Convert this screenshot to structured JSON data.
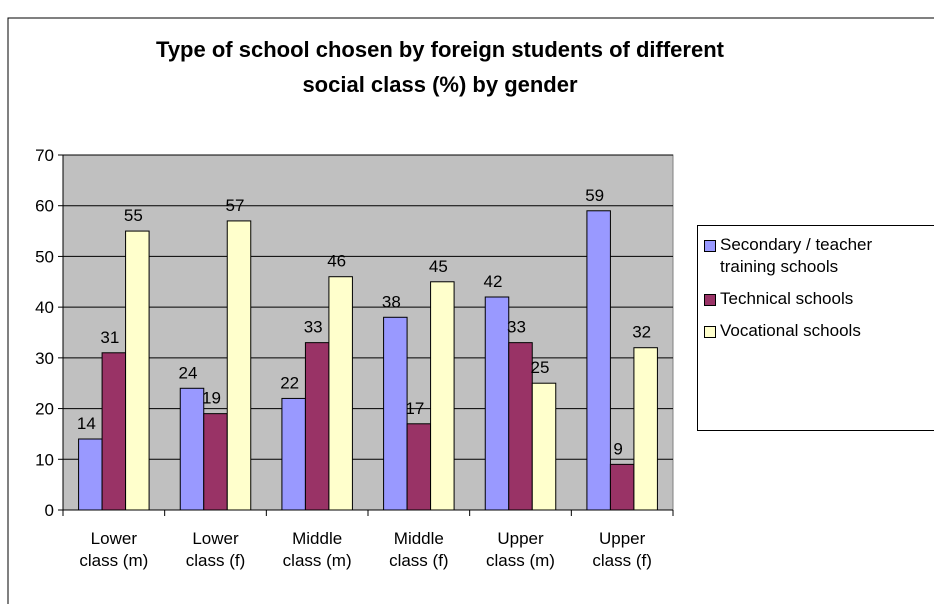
{
  "chart_data": {
    "type": "bar",
    "title": "Type of school chosen by foreign students of different social class (%) by gender",
    "categories": [
      "Lower class (m)",
      "Lower class (f)",
      "Middle class (m)",
      "Middle class (f)",
      "Upper class (m)",
      "Upper class (f)"
    ],
    "series": [
      {
        "name": "Secondary / teacher training schools",
        "color": "#9999ff",
        "values": [
          14,
          24,
          22,
          38,
          42,
          59
        ]
      },
      {
        "name": "Technical schools",
        "color": "#993366",
        "values": [
          31,
          19,
          33,
          17,
          33,
          9
        ]
      },
      {
        "name": "Vocational schools",
        "color": "#ffffcc",
        "values": [
          55,
          57,
          46,
          45,
          25,
          32
        ]
      }
    ],
    "ylim": [
      0,
      70
    ],
    "yticks": [
      0,
      10,
      20,
      30,
      40,
      50,
      60,
      70
    ],
    "grid": true,
    "legend": "right",
    "plot_background": "#c0c0c0"
  }
}
